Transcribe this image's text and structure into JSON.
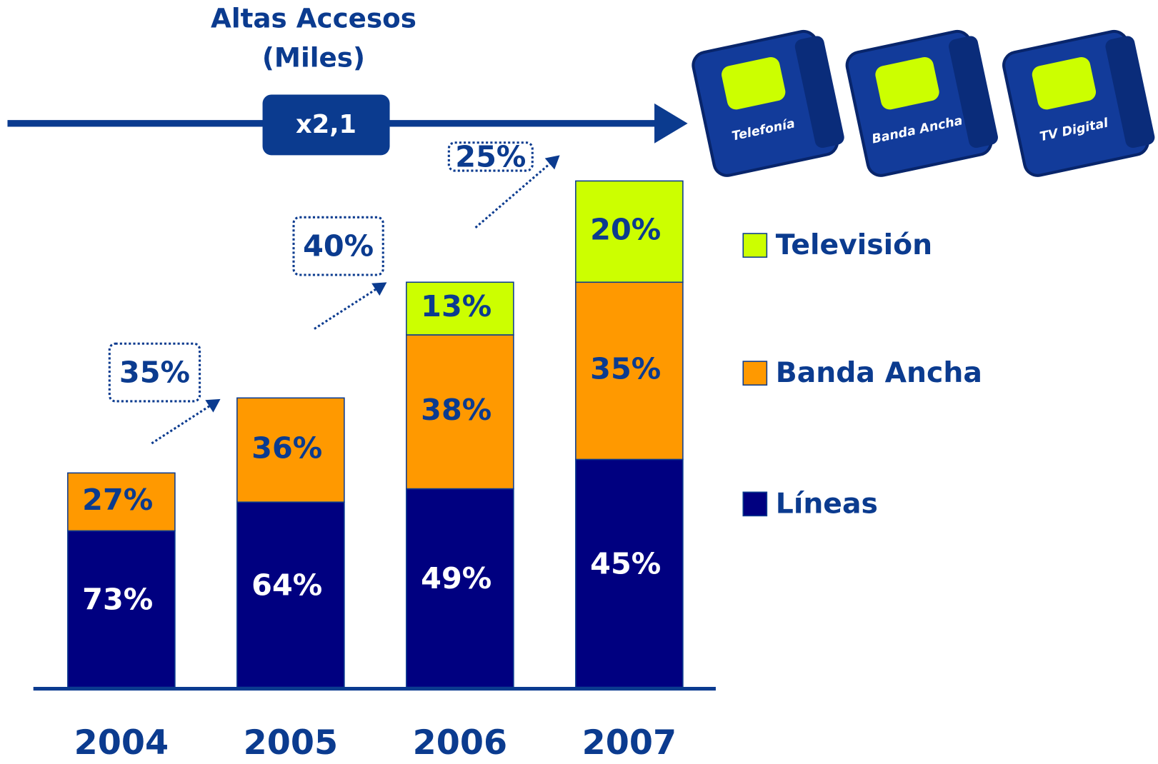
{
  "chart_data": {
    "type": "bar",
    "stacked": true,
    "title": "Altas Accesos",
    "subtitle": "(Miles)",
    "overall_growth_label": "x2,1",
    "categories": [
      "2004",
      "2005",
      "2006",
      "2007"
    ],
    "series": [
      {
        "name": "Líneas",
        "color": "#000080",
        "values": [
          73,
          64,
          49,
          45
        ],
        "value_labels": [
          "73%",
          "64%",
          "49%",
          "45%"
        ]
      },
      {
        "name": "Banda Ancha",
        "color": "#ff9900",
        "values": [
          27,
          36,
          38,
          35
        ],
        "value_labels": [
          "27%",
          "36%",
          "38%",
          "35%"
        ]
      },
      {
        "name": "Televisión",
        "color": "#ccff00",
        "values": [
          null,
          null,
          13,
          20
        ],
        "value_labels": [
          null,
          null,
          "13%",
          "20%"
        ]
      }
    ],
    "growth": {
      "values": [
        35,
        40,
        25
      ],
      "value_labels": [
        "35%",
        "40%",
        "25%"
      ]
    },
    "cube_labels": [
      "Telefonía",
      "Banda Ancha",
      "TV Digital"
    ]
  }
}
